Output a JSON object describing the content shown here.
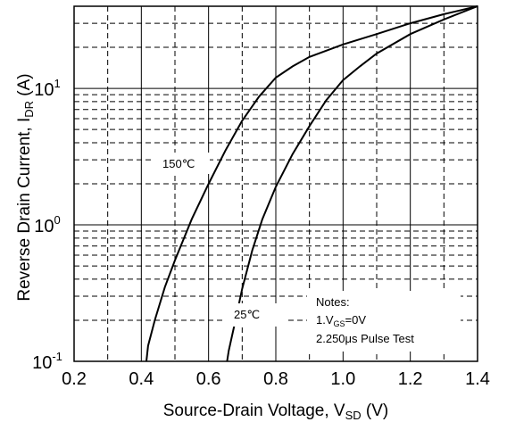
{
  "chart_data": {
    "type": "line",
    "title": "",
    "x_axis": {
      "label_main": "Source-Drain Voltage, V",
      "label_sub": "SD",
      "label_unit": " (V)",
      "range": [
        0.2,
        1.4
      ],
      "ticks": [
        "0.2",
        "0.4",
        "0.6",
        "0.8",
        "1.0",
        "1.2",
        "1.4"
      ],
      "scale": "linear"
    },
    "y_axis": {
      "label_main": "Reverse Drain Current, I",
      "label_sub": "DR",
      "label_unit": " (A)",
      "range": [
        0.1,
        40
      ],
      "scale": "log",
      "ticks": [
        {
          "value": 10,
          "base": "10",
          "exp": "1"
        },
        {
          "value": 1,
          "base": "10",
          "exp": "0"
        },
        {
          "value": 0.1,
          "base": "10",
          "exp": "-1"
        }
      ]
    },
    "grid": true,
    "series": [
      {
        "name": "150℃",
        "points": [
          [
            0.415,
            0.1
          ],
          [
            0.42,
            0.13
          ],
          [
            0.44,
            0.2
          ],
          [
            0.47,
            0.35
          ],
          [
            0.5,
            0.55
          ],
          [
            0.55,
            1.1
          ],
          [
            0.6,
            2.0
          ],
          [
            0.65,
            3.5
          ],
          [
            0.7,
            5.8
          ],
          [
            0.75,
            8.7
          ],
          [
            0.8,
            12
          ],
          [
            0.85,
            14.5
          ],
          [
            0.9,
            17
          ],
          [
            1.0,
            21
          ],
          [
            1.1,
            25
          ],
          [
            1.2,
            30
          ],
          [
            1.3,
            35
          ],
          [
            1.4,
            40
          ]
        ]
      },
      {
        "name": "25℃",
        "points": [
          [
            0.655,
            0.1
          ],
          [
            0.66,
            0.12
          ],
          [
            0.68,
            0.2
          ],
          [
            0.7,
            0.34
          ],
          [
            0.73,
            0.65
          ],
          [
            0.76,
            1.1
          ],
          [
            0.8,
            1.9
          ],
          [
            0.85,
            3.3
          ],
          [
            0.9,
            5.3
          ],
          [
            0.95,
            8.2
          ],
          [
            1.0,
            11.5
          ],
          [
            1.05,
            14.5
          ],
          [
            1.1,
            18
          ],
          [
            1.2,
            25
          ],
          [
            1.3,
            32
          ],
          [
            1.4,
            40
          ]
        ]
      }
    ],
    "notes": {
      "title": "Notes:",
      "line1_prefix": "1.V",
      "line1_sub": "GS",
      "line1_suffix": "=0V",
      "line2": "2.250μs Pulse Test"
    }
  }
}
